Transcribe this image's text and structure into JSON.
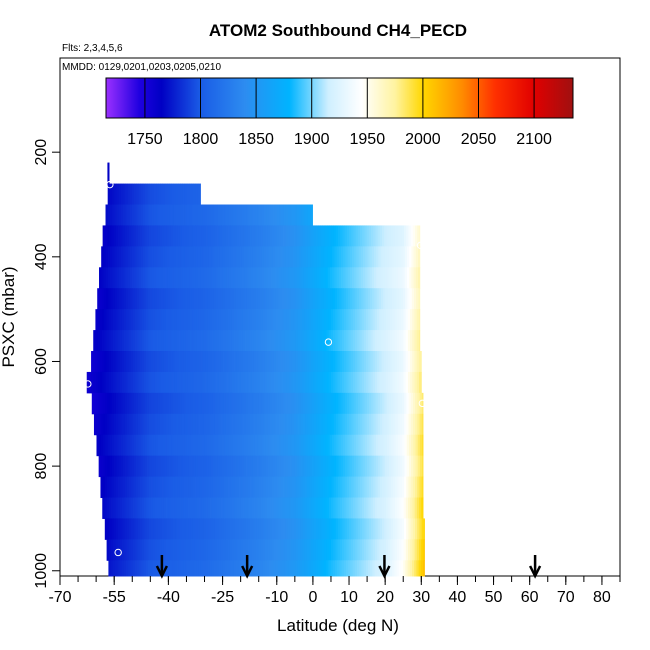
{
  "chart_data": {
    "type": "heatmap",
    "title": "ATOM2 Southbound CH4_PECD",
    "subtitle_flights": "Flts: 2,3,4,5,6",
    "subtitle_dates": "MMDD: 0129,0201,0203,0205,0210",
    "xlabel": "Latitude (deg N)",
    "ylabel": "PSXC (mbar)",
    "xlim": [
      -70,
      85
    ],
    "ylim": [
      1010,
      20
    ],
    "x_major_ticks": [
      -70,
      -55,
      -40,
      -25,
      -10,
      0,
      10,
      20,
      30,
      40,
      50,
      60,
      70,
      80
    ],
    "x_tick_labels": [
      "-70",
      "-55",
      "-40",
      "-25",
      "-10",
      "0",
      "10",
      "20",
      "30",
      "40",
      "50",
      "60",
      "70",
      "80"
    ],
    "y_ticks": [
      200,
      400,
      600,
      800,
      1000
    ],
    "y_tick_labels": [
      "200",
      "400",
      "600",
      "800",
      "1000"
    ],
    "colorbar": {
      "range": [
        1715,
        2135
      ],
      "ticks": [
        1750,
        1800,
        1850,
        1900,
        1950,
        2000,
        2050,
        2100
      ],
      "tick_labels": [
        "1750",
        "1800",
        "1850",
        "1900",
        "1950",
        "2000",
        "2050",
        "2100"
      ],
      "palette_stops": [
        {
          "value": 1715,
          "color": "#9b30ff"
        },
        {
          "value": 1745,
          "color": "#1f00e0"
        },
        {
          "value": 1765,
          "color": "#0000c4"
        },
        {
          "value": 1800,
          "color": "#1a5ce6"
        },
        {
          "value": 1840,
          "color": "#2d8cf0"
        },
        {
          "value": 1880,
          "color": "#00b4ff"
        },
        {
          "value": 1915,
          "color": "#cfefff"
        },
        {
          "value": 1945,
          "color": "#ffffff"
        },
        {
          "value": 1975,
          "color": "#fff3a0"
        },
        {
          "value": 2000,
          "color": "#ffd700"
        },
        {
          "value": 2035,
          "color": "#ff8c00"
        },
        {
          "value": 2065,
          "color": "#ff3000"
        },
        {
          "value": 2100,
          "color": "#e00000"
        },
        {
          "value": 2135,
          "color": "#a01010"
        }
      ]
    },
    "pressure_levels": [
      240,
      280,
      320,
      360,
      400,
      440,
      480,
      520,
      560,
      600,
      640,
      680,
      720,
      760,
      800,
      840,
      880,
      920,
      960,
      1000
    ],
    "row_extents": [
      {
        "p_top": 220,
        "p_bot": 260,
        "lat_start": -56.8,
        "lat_end": -56.3
      },
      {
        "p_top": 260,
        "p_bot": 300,
        "lat_start": -56.8,
        "lat_end": -31
      },
      {
        "p_top": 300,
        "p_bot": 340,
        "lat_start": -57.4,
        "lat_end": 0
      },
      {
        "p_top": 340,
        "p_bot": 380,
        "lat_start": -58.2,
        "lat_end": 29.7
      },
      {
        "p_top": 380,
        "p_bot": 420,
        "lat_start": -58.6,
        "lat_end": 29.7
      },
      {
        "p_top": 420,
        "p_bot": 460,
        "lat_start": -59.2,
        "lat_end": 29.7
      },
      {
        "p_top": 460,
        "p_bot": 500,
        "lat_start": -59.7,
        "lat_end": 29.7
      },
      {
        "p_top": 500,
        "p_bot": 540,
        "lat_start": -60.2,
        "lat_end": 29.7
      },
      {
        "p_top": 540,
        "p_bot": 580,
        "lat_start": -60.8,
        "lat_end": 29.7
      },
      {
        "p_top": 580,
        "p_bot": 620,
        "lat_start": -61.4,
        "lat_end": 30.1
      },
      {
        "p_top": 620,
        "p_bot": 660,
        "lat_start": -62.6,
        "lat_end": 30.1
      },
      {
        "p_top": 660,
        "p_bot": 700,
        "lat_start": -61.2,
        "lat_end": 30.6
      },
      {
        "p_top": 700,
        "p_bot": 740,
        "lat_start": -60.6,
        "lat_end": 30.6
      },
      {
        "p_top": 740,
        "p_bot": 780,
        "lat_start": -59.9,
        "lat_end": 30.6
      },
      {
        "p_top": 780,
        "p_bot": 820,
        "lat_start": -59.3,
        "lat_end": 30.6
      },
      {
        "p_top": 820,
        "p_bot": 860,
        "lat_start": -58.8,
        "lat_end": 30.6
      },
      {
        "p_top": 860,
        "p_bot": 900,
        "lat_start": -58.3,
        "lat_end": 30.6
      },
      {
        "p_top": 900,
        "p_bot": 940,
        "lat_start": -57.6,
        "lat_end": 31
      },
      {
        "p_top": 940,
        "p_bot": 980,
        "lat_start": -57.1,
        "lat_end": 31
      },
      {
        "p_top": 980,
        "p_bot": 1010,
        "lat_start": -56.6,
        "lat_end": 31
      }
    ],
    "field_anchors": [
      {
        "lat": -62,
        "ch4": 1755
      },
      {
        "lat": -55,
        "ch4": 1772
      },
      {
        "lat": -45,
        "ch4": 1795
      },
      {
        "lat": -30,
        "ch4": 1808
      },
      {
        "lat": -15,
        "ch4": 1830
      },
      {
        "lat": -5,
        "ch4": 1848
      },
      {
        "lat": 5,
        "ch4": 1880
      },
      {
        "lat": 15,
        "ch4": 1905
      },
      {
        "lat": 25,
        "ch4": 1930
      },
      {
        "lat": 31,
        "ch4": 1980
      }
    ],
    "sample_markers": [
      {
        "lat": -56.2,
        "p": 262
      },
      {
        "lat": 29.8,
        "p": 378
      },
      {
        "lat": 4.3,
        "p": 563
      },
      {
        "lat": -62.3,
        "p": 643
      },
      {
        "lat": 30.3,
        "p": 680
      },
      {
        "lat": -53.9,
        "p": 965
      }
    ],
    "arrows_lat": [
      -41.8,
      -18.2,
      19.8,
      61.5
    ]
  }
}
